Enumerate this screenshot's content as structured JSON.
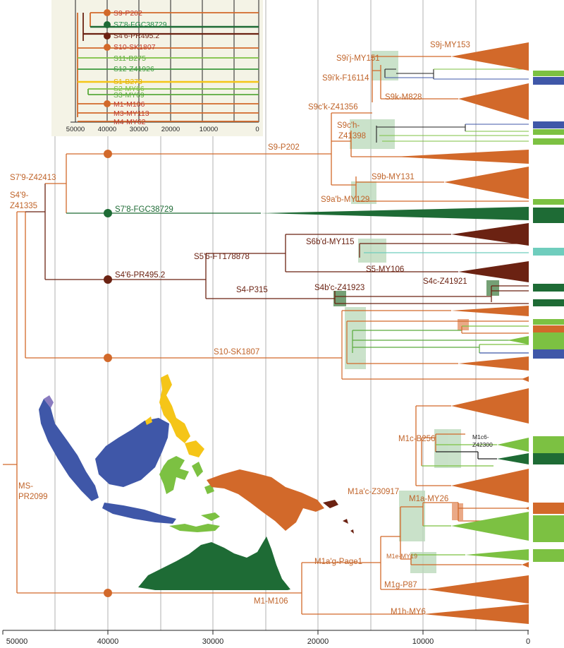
{
  "colors": {
    "orange": "#d2692a",
    "dark_green": "#1e6b35",
    "brown": "#6b2212",
    "light_green": "#7cc142",
    "mid_green": "#5aaa3c",
    "blue": "#3f57a8",
    "yellow": "#f5c518",
    "teal": "#6fcdbd",
    "highlight": "#b8d8b8",
    "dark_highlight": "#5d8f5d"
  },
  "main_axis": {
    "ticks": [
      "50000",
      "40000",
      "30000",
      "20000",
      "10000",
      "0"
    ]
  },
  "inset_axis": {
    "ticks": [
      "50000",
      "40000",
      "30000",
      "20000",
      "10000",
      "0"
    ]
  },
  "inset_legend": [
    {
      "label": "S9-P202",
      "color": "#c0392b",
      "dot": true
    },
    {
      "label": "S7'8-FGC38729",
      "color": "#1e6b35",
      "dot": true
    },
    {
      "label": "S4'6-PR495.2",
      "color": "#6b2212",
      "dot": true
    },
    {
      "label": "S10-SK1807",
      "color": "#c0392b",
      "dot": true
    },
    {
      "label": "S11-B275",
      "color": "#5aaa3c",
      "dot": false
    },
    {
      "label": "S12-Z41926",
      "color": "#3c9a3c",
      "dot": false
    },
    {
      "label": "S1-B273",
      "color": "#f5c518",
      "dot": false
    },
    {
      "label": "S2-MY66",
      "color": "#7cc142",
      "dot": false
    },
    {
      "label": "S3-MY69",
      "color": "#5aaa3c",
      "dot": false
    },
    {
      "label": "M1-M106",
      "color": "#c0392b",
      "dot": true
    },
    {
      "label": "M3-MY113",
      "color": "#c0392b",
      "dot": false
    },
    {
      "label": "M4-MY62",
      "color": "#c0392b",
      "dot": false
    }
  ],
  "node_labels": {
    "ms": [
      "MS-",
      "PR2099"
    ],
    "s4_9": [
      "S4'9-",
      "Z41335"
    ],
    "s7_9": "S7'9-Z42413",
    "s9": "S9-P202",
    "s7_8": "S7'8-FGC38729",
    "s4_6": "S4'6-PR495.2",
    "s5_6": "S5'6-FT178878",
    "s4": "S4-P315",
    "s10": "S10-SK1807",
    "m1": "M1-M106",
    "s9j": "S9j-MY153",
    "s9ij": "S9i'j-MY151",
    "s9ik": "S9i'k-F16114",
    "s9k": "S9k-M828",
    "s9ck": "S9c'k-Z41356",
    "s9ch": [
      "S9c'h-",
      "Z41398"
    ],
    "s9b": "S9b-MY131",
    "s9ab": "S9a'b-MY129",
    "s6bd": "S6b'd-MY115",
    "s5": "S5-MY106",
    "s4bc": "S4b'c-Z41923",
    "s4c": "S4c-Z41921",
    "m1c": "M1c-B256",
    "m1c6": [
      "M1c6-",
      "Z42300"
    ],
    "m1ac": "M1a'c-Z30917",
    "m1a": "M1a-MY26",
    "m1e": "M1e-MY19",
    "m1ag": "M1a'g-Page1",
    "m1g": "M1g-P87",
    "m1h": "M1h-MY6"
  }
}
